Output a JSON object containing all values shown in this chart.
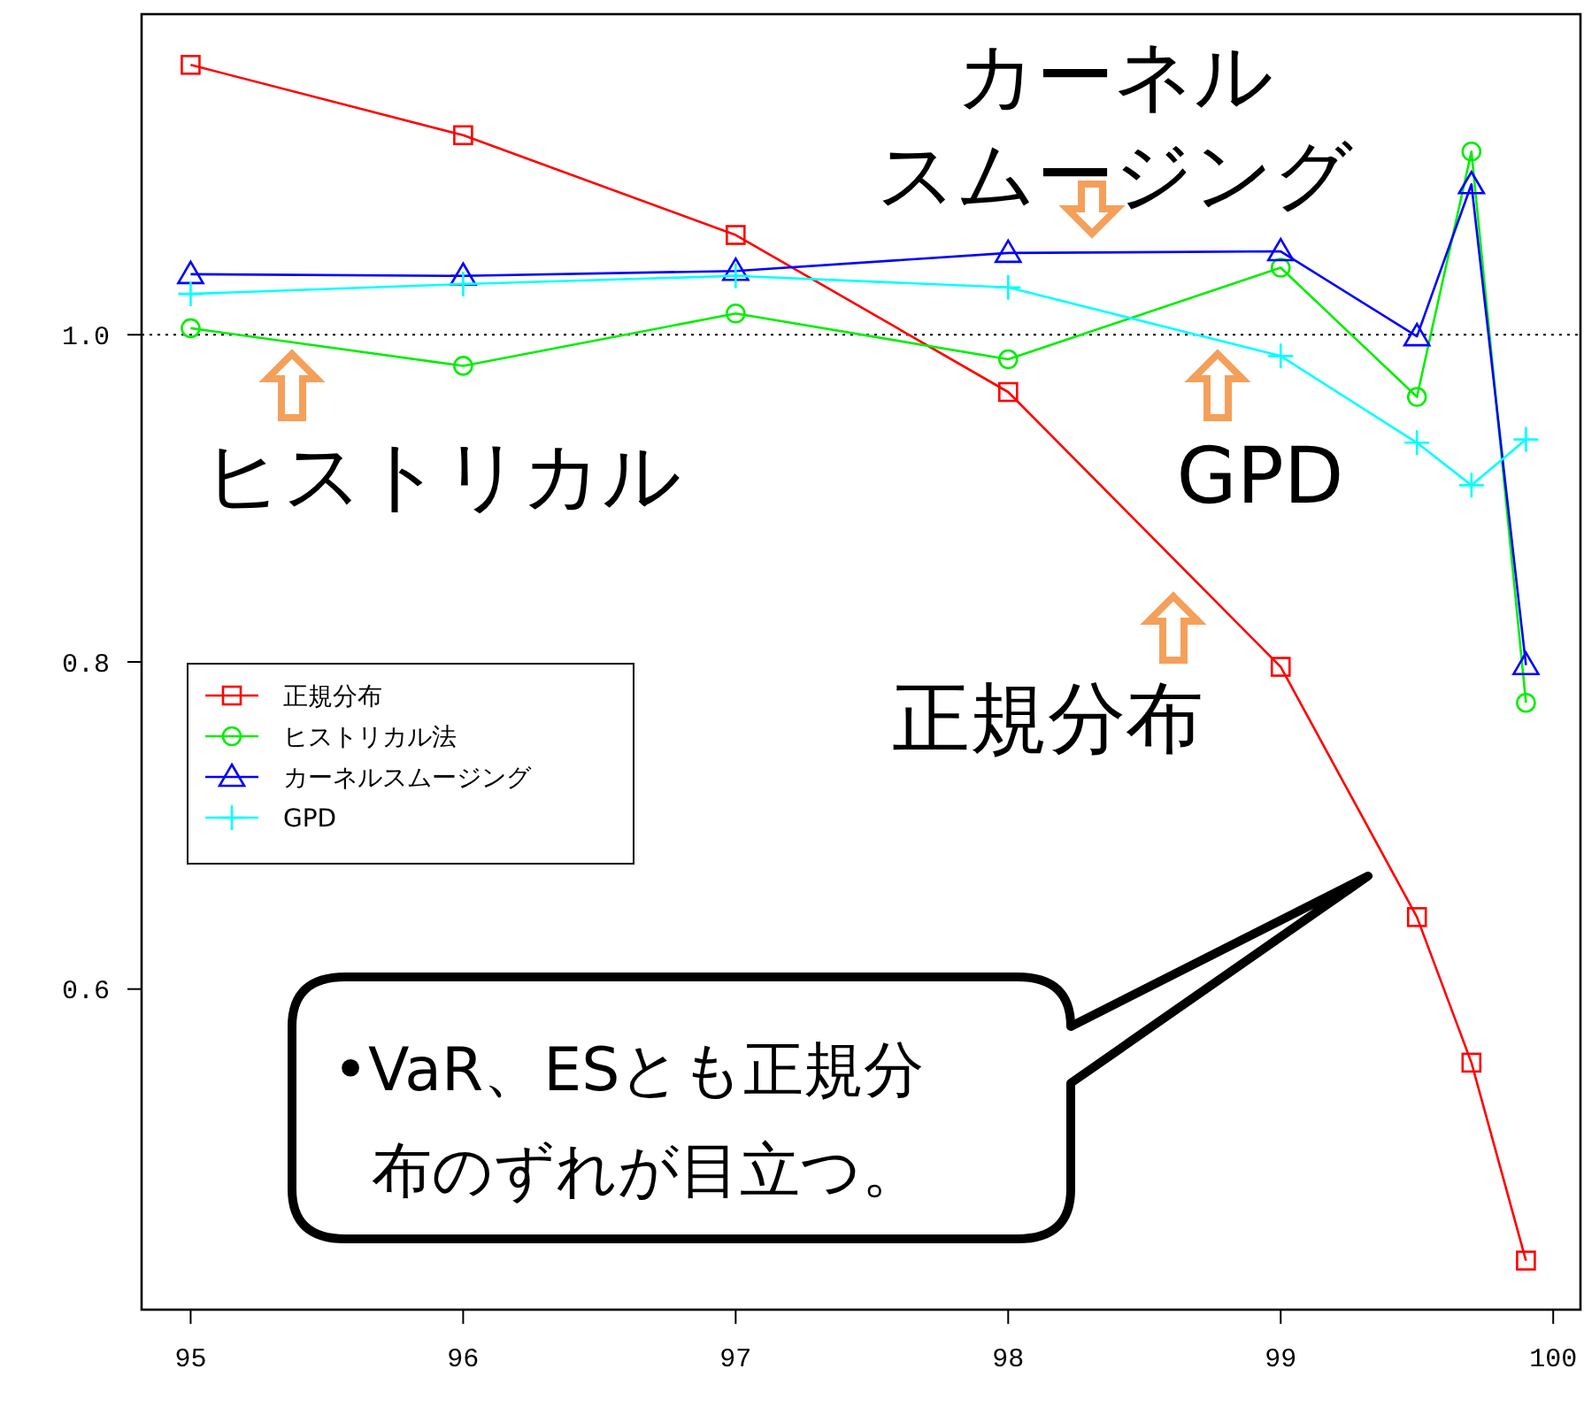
{
  "chart_data": {
    "type": "line",
    "x": [
      95,
      96,
      97,
      98,
      99,
      99.5,
      99.7,
      99.9
    ],
    "series": [
      {
        "name": "正規分布",
        "color": "#ff0000",
        "marker": "square",
        "values": [
          1.165,
          1.122,
          1.061,
          0.965,
          0.797,
          0.644,
          0.555,
          0.434
        ]
      },
      {
        "name": "ヒストリカル法",
        "color": "#00ee00",
        "marker": "circle",
        "values": [
          1.004,
          0.981,
          1.013,
          0.985,
          1.041,
          0.962,
          1.112,
          0.775
        ]
      },
      {
        "name": "カーネルスムージング",
        "color": "#0000ff",
        "marker": "triangle",
        "values": [
          1.037,
          1.036,
          1.039,
          1.05,
          1.051,
          0.999,
          1.092,
          0.798
        ]
      },
      {
        "name": "GPD",
        "color": "#00ffff",
        "marker": "cross",
        "values": [
          1.025,
          1.031,
          1.036,
          1.029,
          0.987,
          0.934,
          0.908,
          0.936
        ]
      }
    ],
    "xlim": [
      94.82,
      100.1
    ],
    "xticks": [
      95,
      96,
      97,
      98,
      99,
      100
    ],
    "ylim": [
      0.404,
      1.196
    ],
    "yticks": [
      {
        "value": 0.6,
        "label": "0.6"
      },
      {
        "value": 0.8,
        "label": "0.8"
      },
      {
        "value": 1,
        "label": "1.0"
      }
    ],
    "ref_lines": [
      {
        "axis": "y",
        "value": 1,
        "color": "#000000",
        "line_style": "dotted"
      }
    ],
    "legend": "left",
    "grid": false,
    "annotations": [
      "カーネルスムージング",
      "ヒストリカル",
      "GPD",
      "正規分布",
      "•VaR、ESとも正規分布のずれが目立つ。"
    ]
  }
}
